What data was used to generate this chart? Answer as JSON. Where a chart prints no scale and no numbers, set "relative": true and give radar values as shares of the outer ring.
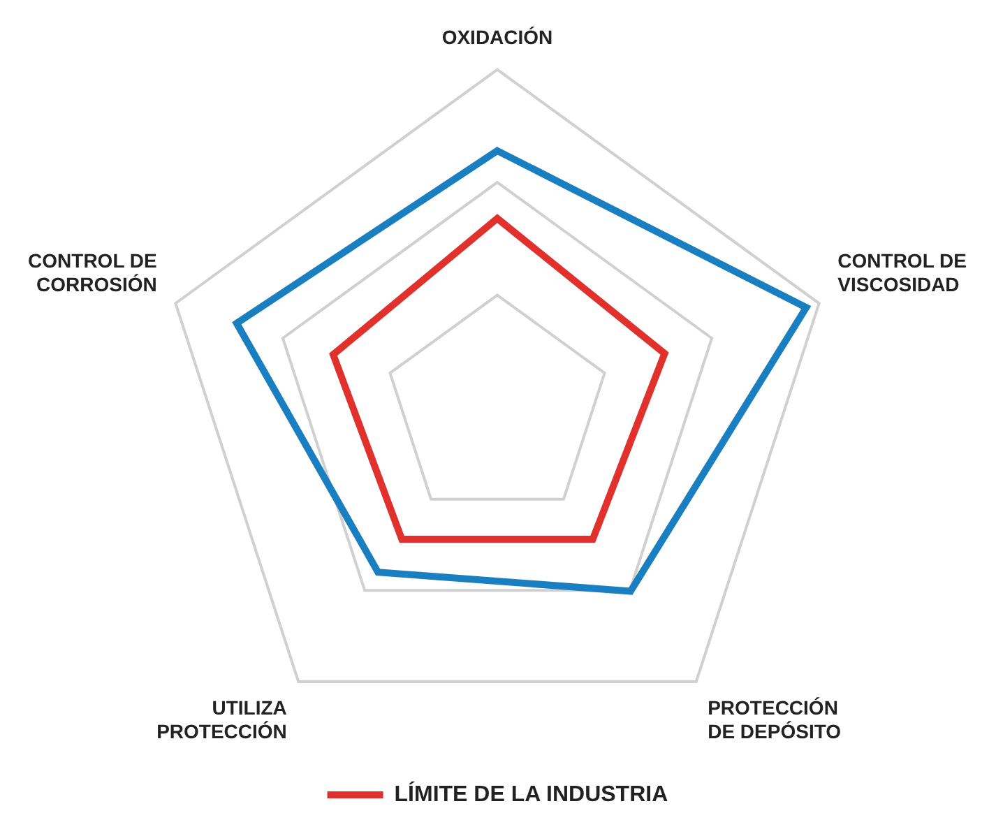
{
  "chart_data": {
    "type": "radar",
    "relative": true,
    "categories": [
      "OXIDACIÓN",
      "CONTROL DE\nVISCOSIDAD",
      "PROTECCIÓN\nDE DEPÓSITO",
      "UTILIZA\nPROTECCIÓN",
      "CONTROL DE\nCORROSIÓN"
    ],
    "series": [
      {
        "color": "#1a7fc1",
        "values": [
          0.76,
          0.96,
          0.67,
          0.6,
          0.81
        ]
      },
      {
        "name": "LÍMITE DE LA INDUSTRIA",
        "color": "#e0312d",
        "values": [
          0.56,
          0.52,
          0.48,
          0.48,
          0.51
        ]
      }
    ],
    "legend": "bottom",
    "grid": true
  }
}
